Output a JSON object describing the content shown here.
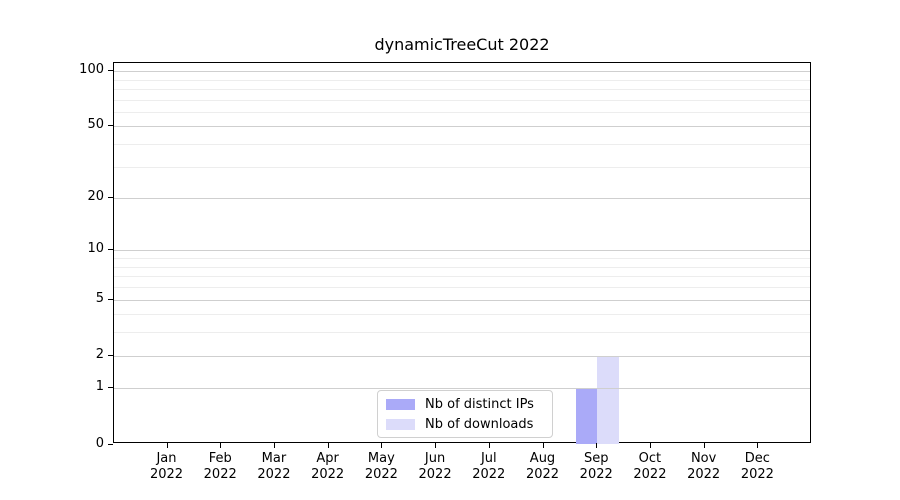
{
  "title": "dynamicTreeCut 2022",
  "chart_data": {
    "type": "bar",
    "title": "dynamicTreeCut 2022",
    "categories": [
      "Jan",
      "Feb",
      "Mar",
      "Apr",
      "May",
      "Jun",
      "Jul",
      "Aug",
      "Sep",
      "Oct",
      "Nov",
      "Dec"
    ],
    "category_year": "2022",
    "series": [
      {
        "name": "Nb of distinct IPs",
        "color": "#aaaaf8",
        "values": [
          0,
          0,
          0,
          0,
          0,
          0,
          0,
          0,
          1,
          0,
          0,
          0
        ]
      },
      {
        "name": "Nb of downloads",
        "color": "#dcdcfa",
        "values": [
          0,
          0,
          0,
          0,
          0,
          0,
          0,
          0,
          2,
          0,
          0,
          0
        ]
      }
    ],
    "y_axis": {
      "scale": "log1p",
      "ticks": [
        0,
        1,
        2,
        5,
        10,
        20,
        50,
        100
      ],
      "minor_gridlines": [
        3,
        4,
        6,
        7,
        8,
        9,
        30,
        40,
        60,
        70,
        80,
        90
      ],
      "range": [
        0,
        110
      ]
    },
    "legend": {
      "position": "bottom-center",
      "entries": [
        "Nb of distinct IPs",
        "Nb of downloads"
      ]
    },
    "grid": "horizontal-only"
  }
}
